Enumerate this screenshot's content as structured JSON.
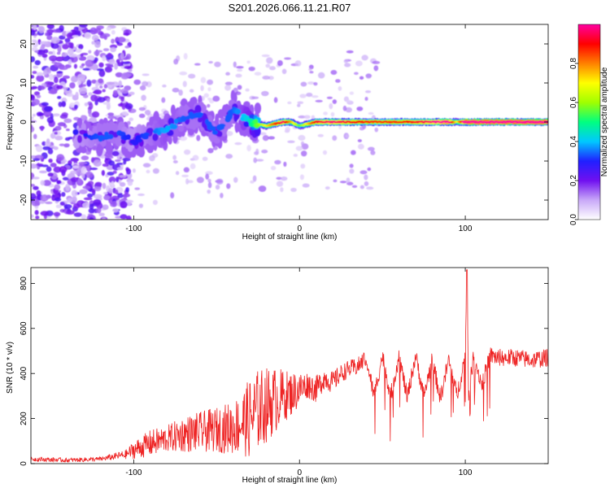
{
  "figure_title": "S201.2026.066.11.21.R07",
  "chart_data": [
    {
      "type": "heatmap",
      "title": "S201.2026.066.11.21.R07",
      "xlabel": "Height of straight line (km)",
      "ylabel": "Frequency (Hz)",
      "xlim": [
        -162,
        150
      ],
      "ylim": [
        -25,
        25
      ],
      "xticks": [
        -100,
        0,
        100
      ],
      "xtick_labels": [
        "-100",
        "0",
        "100"
      ],
      "yticks": [
        -20,
        -10,
        0,
        10,
        20
      ],
      "ytick_labels": [
        "-20",
        "-10",
        "0",
        "10",
        "20"
      ],
      "description_of_pattern": "dominant frequency track near 0 Hz above 0 km, scattered noisy blobs below -20 km",
      "track": {
        "x": [
          -135,
          -120,
          -110,
          -100,
          -90,
          -80,
          -70,
          -60,
          -50,
          -40,
          -30,
          -20,
          -10,
          -5,
          0,
          10,
          20,
          40,
          60,
          80,
          90,
          95,
          100,
          120,
          150
        ],
        "y": [
          -3,
          -4,
          -3,
          -5,
          -3,
          -2,
          1,
          2,
          -3,
          3,
          0,
          -1,
          0,
          0,
          -1,
          0,
          0,
          0,
          0,
          0,
          0,
          0,
          0,
          0,
          0
        ],
        "amplitude": [
          0.15,
          0.2,
          0.2,
          0.15,
          0.2,
          0.25,
          0.2,
          0.2,
          0.2,
          0.2,
          0.3,
          0.55,
          0.8,
          0.6,
          0.4,
          0.75,
          0.8,
          0.7,
          0.7,
          0.8,
          0.9,
          0.5,
          0.95,
          0.95,
          0.95
        ]
      },
      "colorbar": {
        "label": "Normalized spectral amplitude",
        "range": [
          0,
          1
        ],
        "ticks": [
          0.0,
          0.2,
          0.4,
          0.6,
          0.8
        ],
        "tick_labels": [
          "0.0",
          "0.2",
          "0.4",
          "0.6",
          "0.8"
        ],
        "colors": [
          "#ffffff",
          "#c8a8f8",
          "#7010f0",
          "#2020ff",
          "#00c8ff",
          "#00ff80",
          "#a0ff00",
          "#ffff00",
          "#ff8000",
          "#ff0000",
          "#ff00a0"
        ]
      }
    },
    {
      "type": "line",
      "xlabel": "Height of straight line (km)",
      "ylabel": "SNR (10 * v/v)",
      "xlim": [
        -162,
        150
      ],
      "ylim": [
        0,
        870
      ],
      "xticks": [
        -100,
        0,
        100
      ],
      "xtick_labels": [
        "-100",
        "0",
        "100"
      ],
      "yticks": [
        0,
        200,
        400,
        600,
        800
      ],
      "ytick_labels": [
        "0",
        "200",
        "400",
        "600",
        "800"
      ],
      "series": [
        {
          "name": "SNR",
          "color": "#ee2222",
          "x": [
            -162,
            -140,
            -120,
            -105,
            -100,
            -90,
            -80,
            -70,
            -60,
            -50,
            -40,
            -35,
            -30,
            -25,
            -20,
            -15,
            -10,
            -5,
            0,
            5,
            10,
            15,
            20,
            25,
            30,
            35,
            40,
            45,
            50,
            55,
            60,
            65,
            70,
            75,
            80,
            85,
            90,
            95,
            100,
            101,
            102,
            105,
            110,
            115,
            120,
            130,
            140,
            150
          ],
          "values": [
            20,
            15,
            20,
            40,
            60,
            90,
            110,
            130,
            140,
            150,
            160,
            180,
            200,
            240,
            260,
            280,
            300,
            310,
            330,
            350,
            330,
            380,
            360,
            400,
            420,
            430,
            470,
            300,
            480,
            300,
            480,
            290,
            480,
            300,
            460,
            290,
            460,
            300,
            480,
            860,
            300,
            480,
            350,
            480,
            470,
            470,
            460,
            470
          ],
          "noise_amplitude": [
            10,
            10,
            10,
            20,
            40,
            60,
            60,
            80,
            90,
            100,
            120,
            140,
            180,
            180,
            170,
            150,
            120,
            100,
            80,
            60,
            60,
            50,
            50,
            40,
            40,
            40,
            40,
            40,
            40,
            40,
            40,
            40,
            40,
            40,
            40,
            40,
            40,
            40,
            40,
            0,
            40,
            40,
            40,
            40,
            40,
            40,
            40,
            40
          ]
        }
      ]
    }
  ]
}
